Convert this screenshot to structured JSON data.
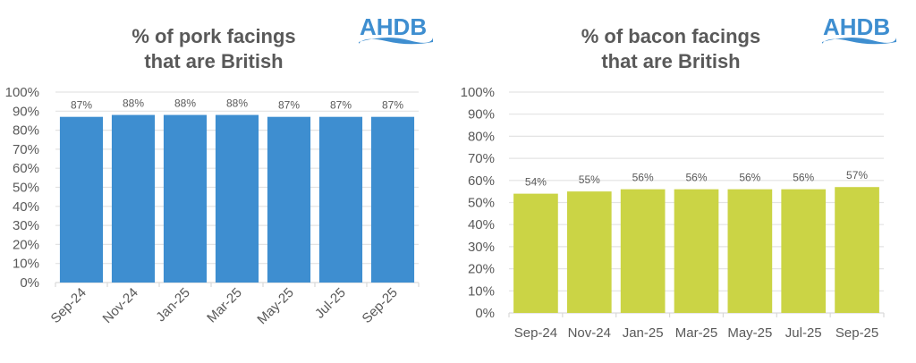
{
  "logo_text": "AHDB",
  "chart_data": [
    {
      "type": "bar",
      "title": [
        "% of pork facings",
        "that are British"
      ],
      "categories": [
        "Sep-24",
        "Nov-24",
        "Jan-25",
        "Mar-25",
        "May-25",
        "Jul-25",
        "Sep-25"
      ],
      "values": [
        87,
        88,
        88,
        88,
        87,
        87,
        87
      ],
      "data_labels": [
        "87%",
        "88%",
        "88%",
        "88%",
        "87%",
        "87%",
        "87%"
      ],
      "yticks": [
        "0%",
        "10%",
        "20%",
        "30%",
        "40%",
        "50%",
        "60%",
        "70%",
        "80%",
        "90%",
        "100%"
      ],
      "ylim": [
        0,
        100
      ],
      "xlabel": "",
      "ylabel": "",
      "grid": true,
      "color": "#3E8ED0",
      "xlabel_rotation": "diagonal"
    },
    {
      "type": "bar",
      "title": [
        "% of bacon facings",
        "that are British"
      ],
      "categories": [
        "Sep-24",
        "Nov-24",
        "Jan-25",
        "Mar-25",
        "May-25",
        "Jul-25",
        "Sep-25"
      ],
      "values": [
        54,
        55,
        56,
        56,
        56,
        56,
        57
      ],
      "data_labels": [
        "54%",
        "55%",
        "56%",
        "56%",
        "56%",
        "56%",
        "57%"
      ],
      "yticks": [
        "0%",
        "10%",
        "20%",
        "30%",
        "40%",
        "50%",
        "60%",
        "70%",
        "80%",
        "90%",
        "100%"
      ],
      "ylim": [
        0,
        100
      ],
      "xlabel": "",
      "ylabel": "",
      "grid": true,
      "color": "#CBD445",
      "xlabel_rotation": "horizontal"
    }
  ]
}
